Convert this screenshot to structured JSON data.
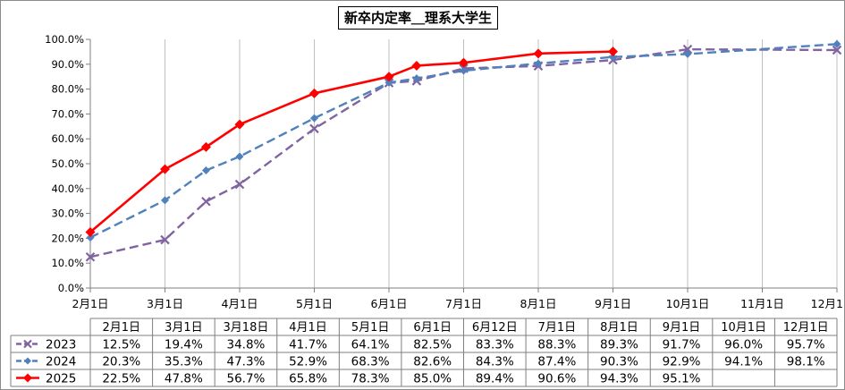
{
  "chart_data": {
    "type": "line",
    "title": "新卒内定率＿理系大学生",
    "x_axis_ticks": [
      "2月1日",
      "3月1日",
      "4月1日",
      "5月1日",
      "6月1日",
      "7月1日",
      "8月1日",
      "9月1日",
      "10月1日",
      "11月1日",
      "12月1"
    ],
    "y_axis_ticks": [
      "0.0%",
      "10.0%",
      "20.0%",
      "30.0%",
      "40.0%",
      "50.0%",
      "60.0%",
      "70.0%",
      "80.0%",
      "90.0%",
      "100.0%"
    ],
    "ylim": [
      0,
      100
    ],
    "grid": "vertical",
    "legend": "data-table",
    "categories": [
      "2月1日",
      "3月1日",
      "3月18日",
      "4月1日",
      "5月1日",
      "6月1日",
      "6月12日",
      "7月1日",
      "8月1日",
      "9月1日",
      "10月1日",
      "12月1日"
    ],
    "x_month": [
      2,
      3,
      3.55,
      4,
      5,
      6,
      6.37,
      7,
      8,
      9,
      10,
      12
    ],
    "series": [
      {
        "name": "2023",
        "color": "#8064a2",
        "style": "dash-x",
        "values": [
          12.5,
          19.4,
          34.8,
          41.7,
          64.1,
          82.5,
          83.3,
          88.3,
          89.3,
          91.7,
          96.0,
          95.7
        ],
        "labels": [
          "12.5%",
          "19.4%",
          "34.8%",
          "41.7%",
          "64.1%",
          "82.5%",
          "83.3%",
          "88.3%",
          "89.3%",
          "91.7%",
          "96.0%",
          "95.7%"
        ]
      },
      {
        "name": "2024",
        "color": "#4f81bd",
        "style": "dash-diamond",
        "values": [
          20.3,
          35.3,
          47.3,
          52.9,
          68.3,
          82.6,
          84.3,
          87.4,
          90.3,
          92.9,
          94.1,
          98.1
        ],
        "labels": [
          "20.3%",
          "35.3%",
          "47.3%",
          "52.9%",
          "68.3%",
          "82.6%",
          "84.3%",
          "87.4%",
          "90.3%",
          "92.9%",
          "94.1%",
          "98.1%"
        ]
      },
      {
        "name": "2025",
        "color": "#ff0000",
        "style": "solid-diamond",
        "values": [
          22.5,
          47.8,
          56.7,
          65.8,
          78.3,
          85.0,
          89.4,
          90.6,
          94.3,
          95.1,
          null,
          null
        ],
        "labels": [
          "22.5%",
          "47.8%",
          "56.7%",
          "65.8%",
          "78.3%",
          "85.0%",
          "89.4%",
          "90.6%",
          "94.3%",
          "95.1%",
          "",
          ""
        ]
      }
    ]
  }
}
